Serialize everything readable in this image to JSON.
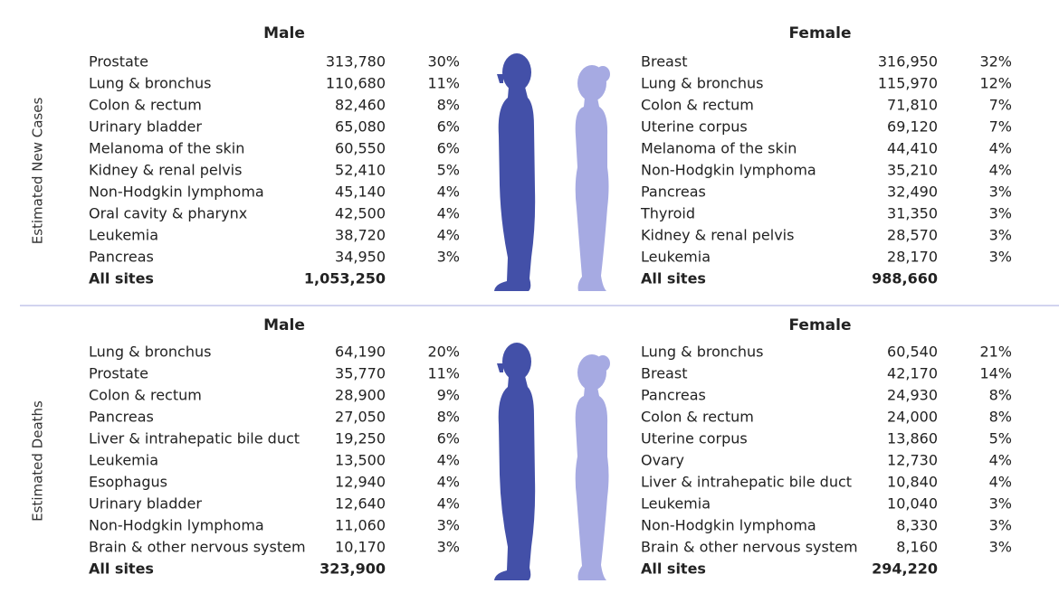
{
  "sections": [
    {
      "label": "Estimated New Cases",
      "groups": [
        {
          "title": "Male",
          "rows": [
            [
              "Prostate",
              "313,780",
              "30%"
            ],
            [
              "Lung & bronchus",
              "110,680",
              "11%"
            ],
            [
              "Colon & rectum",
              "82,460",
              "8%"
            ],
            [
              "Urinary bladder",
              "65,080",
              "6%"
            ],
            [
              "Melanoma of the skin",
              "60,550",
              "6%"
            ],
            [
              "Kidney & renal pelvis",
              "52,410",
              "5%"
            ],
            [
              "Non-Hodgkin lymphoma",
              "45,140",
              "4%"
            ],
            [
              "Oral cavity & pharynx",
              "42,500",
              "4%"
            ],
            [
              "Leukemia",
              "38,720",
              "4%"
            ],
            [
              "Pancreas",
              "34,950",
              "3%"
            ]
          ],
          "total": [
            "All sites",
            "1,053,250"
          ]
        },
        {
          "title": "Female",
          "rows": [
            [
              "Breast",
              "316,950",
              "32%"
            ],
            [
              "Lung & bronchus",
              "115,970",
              "12%"
            ],
            [
              "Colon & rectum",
              "71,810",
              "7%"
            ],
            [
              "Uterine corpus",
              "69,120",
              "7%"
            ],
            [
              "Melanoma of the skin",
              "44,410",
              "4%"
            ],
            [
              "Non-Hodgkin lymphoma",
              "35,210",
              "4%"
            ],
            [
              "Pancreas",
              "32,490",
              "3%"
            ],
            [
              "Thyroid",
              "31,350",
              "3%"
            ],
            [
              "Kidney & renal pelvis",
              "28,570",
              "3%"
            ],
            [
              "Leukemia",
              "28,170",
              "3%"
            ]
          ],
          "total": [
            "All sites",
            "988,660"
          ]
        }
      ]
    },
    {
      "label": "Estimated Deaths",
      "groups": [
        {
          "title": "Male",
          "rows": [
            [
              "Lung & bronchus",
              "64,190",
              "20%"
            ],
            [
              "Prostate",
              "35,770",
              "11%"
            ],
            [
              "Colon & rectum",
              "28,900",
              "9%"
            ],
            [
              "Pancreas",
              "27,050",
              "8%"
            ],
            [
              "Liver & intrahepatic bile duct",
              "19,250",
              "6%"
            ],
            [
              "Leukemia",
              "13,500",
              "4%"
            ],
            [
              "Esophagus",
              "12,940",
              "4%"
            ],
            [
              "Urinary bladder",
              "12,640",
              "4%"
            ],
            [
              "Non-Hodgkin lymphoma",
              "11,060",
              "3%"
            ],
            [
              "Brain & other nervous system",
              "10,170",
              "3%"
            ]
          ],
          "total": [
            "All sites",
            "323,900"
          ]
        },
        {
          "title": "Female",
          "rows": [
            [
              "Lung & bronchus",
              "60,540",
              "21%"
            ],
            [
              "Breast",
              "42,170",
              "14%"
            ],
            [
              "Pancreas",
              "24,930",
              "8%"
            ],
            [
              "Colon & rectum",
              "24,000",
              "8%"
            ],
            [
              "Uterine corpus",
              "13,860",
              "5%"
            ],
            [
              "Ovary",
              "12,730",
              "4%"
            ],
            [
              "Liver & intrahepatic bile duct",
              "10,840",
              "4%"
            ],
            [
              "Leukemia",
              "10,040",
              "3%"
            ],
            [
              "Non-Hodgkin lymphoma",
              "8,330",
              "3%"
            ],
            [
              "Brain & other nervous system",
              "8,160",
              "3%"
            ]
          ],
          "total": [
            "All sites",
            "294,220"
          ]
        }
      ]
    }
  ]
}
